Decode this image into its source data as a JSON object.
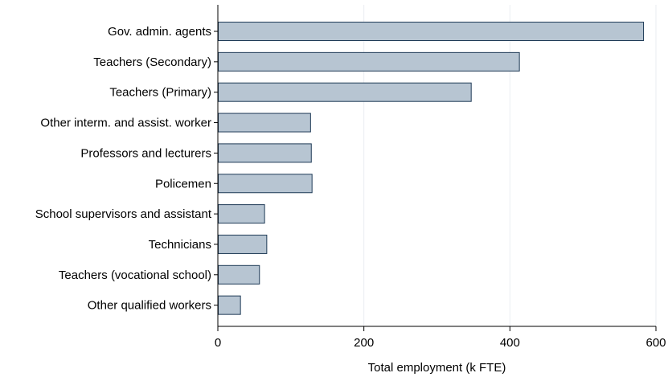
{
  "chart_data": {
    "type": "bar",
    "orientation": "horizontal",
    "categories": [
      "Gov. admin. agents",
      "Teachers (Secondary)",
      "Teachers (Primary)",
      "Other interm. and assist. worker",
      "Professors and lecturers",
      "Policemen",
      "School supervisors and assistant",
      "Technicians",
      "Teachers (vocational school)",
      "Other qualified workers"
    ],
    "values": [
      583,
      413,
      347,
      127,
      128,
      129,
      64,
      67,
      57,
      31
    ],
    "title": "",
    "xlabel": "Total employment (k FTE)",
    "ylabel": "",
    "xlim": [
      0,
      600
    ],
    "xticks": [
      0,
      200,
      400,
      600
    ],
    "xtick_labels": [
      "0",
      "200",
      "400",
      "600"
    ],
    "grid": "vertical",
    "legend": "none",
    "colors": {
      "bar_fill": "#b7c5d2",
      "bar_stroke": "#1e3a56",
      "grid": "#eaeef2",
      "axis": "#000000"
    }
  }
}
